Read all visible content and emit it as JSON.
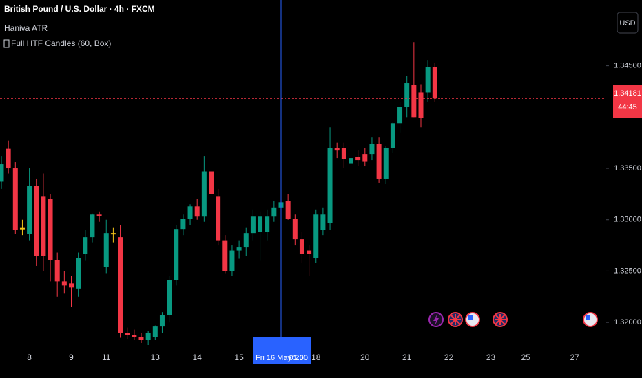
{
  "chart_data": {
    "type": "candlestick",
    "title": "British Pound / U.S. Dollar · 4h · FXCM",
    "indicators": [
      "Haniva ATR",
      "Full HTF Candles (60, Box)"
    ],
    "currency": "USD",
    "countdown": "44:45",
    "crosshair_label": "Fri 16 May '25",
    "crosshair_time": "01:00",
    "up_color": "#089981",
    "down_color": "#f23645",
    "neutral_color": "#f5c518",
    "crosshair_color": "#2962ff",
    "grid": false,
    "ylim": [
      1.3176,
      1.3514
    ],
    "yticks": [
      {
        "value": 1.32,
        "label": "1.32000"
      },
      {
        "value": 1.325,
        "label": "1.32500"
      },
      {
        "value": 1.33,
        "label": "1.33000"
      },
      {
        "value": 1.335,
        "label": "1.33500"
      },
      {
        "value": 1.345,
        "label": "1.34500"
      }
    ],
    "categories": [
      null,
      null,
      null,
      null,
      "8",
      null,
      null,
      null,
      null,
      null,
      "9",
      null,
      null,
      null,
      null,
      "11",
      null,
      null,
      null,
      null,
      null,
      null,
      "13",
      null,
      null,
      null,
      null,
      null,
      "14",
      null,
      null,
      null,
      null,
      null,
      "15",
      null,
      null,
      null,
      null,
      null,
      null,
      null,
      null,
      null,
      null,
      "18",
      null,
      null,
      null,
      null,
      null,
      null,
      "20",
      null,
      null,
      null,
      null,
      null,
      "21",
      null,
      null,
      null,
      null,
      null,
      "22",
      null,
      null,
      null,
      null,
      null,
      "23",
      null,
      null,
      null,
      null,
      "25",
      null,
      null,
      null,
      null,
      null,
      null,
      "27",
      null,
      null,
      null,
      null
    ],
    "series": {
      "open": [
        1.3337,
        1.3369,
        1.335,
        1.3292,
        1.3286,
        1.3333,
        1.3323,
        1.332,
        1.3261,
        1.324,
        1.3238,
        1.3233,
        1.3267,
        1.3283,
        1.3305,
        1.3254,
        1.3287,
        1.3283,
        1.319,
        1.3188,
        1.3186,
        1.3183,
        1.3186,
        1.3196,
        1.3207,
        1.3241,
        1.3291,
        1.3301,
        1.3313,
        1.3303,
        1.3347,
        1.3323,
        1.328,
        1.325,
        1.327,
        1.3273,
        1.3287,
        1.3288,
        1.3288,
        1.3303,
        1.3312,
        1.3318,
        1.3301,
        1.3281,
        1.327,
        1.3263,
        1.329,
        1.3297,
        1.337,
        1.337,
        1.3355,
        1.3361,
        1.3364,
        1.3364,
        1.3374,
        1.334,
        1.337,
        1.3394,
        1.341,
        1.3431,
        1.3424,
        1.3424,
        1.3449,
        null,
        null,
        null,
        null,
        null,
        null,
        null,
        null,
        null,
        null,
        null,
        null,
        null,
        null,
        null,
        null,
        null,
        null,
        null,
        null,
        null,
        null,
        null,
        null
      ],
      "high": [
        1.3362,
        1.3377,
        1.3356,
        1.33,
        1.335,
        1.334,
        1.3345,
        1.3325,
        1.3268,
        1.325,
        1.3245,
        1.3268,
        1.329,
        1.3306,
        1.3308,
        1.33,
        1.3292,
        1.3295,
        1.3195,
        1.3193,
        1.319,
        1.3192,
        1.3197,
        1.321,
        1.3245,
        1.3295,
        1.3305,
        1.3315,
        1.332,
        1.3362,
        1.3355,
        1.333,
        1.3285,
        1.3275,
        1.328,
        1.3292,
        1.331,
        1.3308,
        1.331,
        1.3318,
        1.3322,
        1.3325,
        1.3305,
        1.3288,
        1.3275,
        1.331,
        1.3312,
        1.339,
        1.3375,
        1.3375,
        1.3365,
        1.3368,
        1.337,
        1.338,
        1.338,
        1.3372,
        1.3395,
        1.3415,
        1.344,
        1.3473,
        1.3432,
        1.3455,
        1.3453,
        null,
        null,
        null,
        null,
        null,
        null,
        null,
        null,
        null,
        null,
        null,
        null,
        null,
        null,
        null,
        null,
        null,
        null,
        null,
        null,
        null,
        null,
        null,
        null
      ],
      "low": [
        1.333,
        1.3345,
        1.3286,
        1.3285,
        1.328,
        1.3255,
        1.325,
        1.324,
        1.3225,
        1.3228,
        1.3215,
        1.3225,
        1.326,
        1.3278,
        1.3298,
        1.3248,
        1.3278,
        1.3185,
        1.3184,
        1.3183,
        1.318,
        1.3178,
        1.3183,
        1.319,
        1.32,
        1.3236,
        1.3285,
        1.3295,
        1.33,
        1.3298,
        1.3322,
        1.3275,
        1.3248,
        1.3245,
        1.3262,
        1.3265,
        1.328,
        1.326,
        1.328,
        1.3298,
        1.3305,
        1.33,
        1.3275,
        1.3258,
        1.3245,
        1.3258,
        1.3285,
        1.329,
        1.336,
        1.335,
        1.3345,
        1.3352,
        1.3352,
        1.3358,
        1.3336,
        1.3335,
        1.3365,
        1.3385,
        1.34,
        1.34,
        1.339,
        1.3415,
        1.3415,
        null,
        null,
        null,
        null,
        null,
        null,
        null,
        null,
        null,
        null,
        null,
        null,
        null,
        null,
        null,
        null,
        null,
        null,
        null,
        null,
        null,
        null,
        null,
        null
      ],
      "close": [
        1.3354,
        1.335,
        1.329,
        1.3292,
        1.3333,
        1.3265,
        1.3265,
        1.3261,
        1.324,
        1.3236,
        1.3234,
        1.3263,
        1.3283,
        1.3305,
        1.3304,
        1.3287,
        1.3287,
        1.319,
        1.3188,
        1.3186,
        1.3183,
        1.319,
        1.3196,
        1.3207,
        1.3241,
        1.3291,
        1.3301,
        1.3313,
        1.3303,
        1.3347,
        1.3325,
        1.328,
        1.325,
        1.327,
        1.3273,
        1.3287,
        1.3303,
        1.3303,
        1.3303,
        1.3312,
        1.3317,
        1.3301,
        1.3281,
        1.3267,
        1.3267,
        1.3305,
        1.3305,
        1.337,
        1.3368,
        1.3359,
        1.336,
        1.3358,
        1.3357,
        1.3374,
        1.334,
        1.337,
        1.3394,
        1.341,
        1.3433,
        1.34,
        1.3399,
        1.3449,
        1.34181,
        null,
        null,
        null,
        null,
        null,
        null,
        null,
        null,
        null,
        null,
        null,
        null,
        null,
        null,
        null,
        null,
        null,
        null,
        null,
        null,
        null,
        null,
        null,
        null
      ]
    }
  }
}
